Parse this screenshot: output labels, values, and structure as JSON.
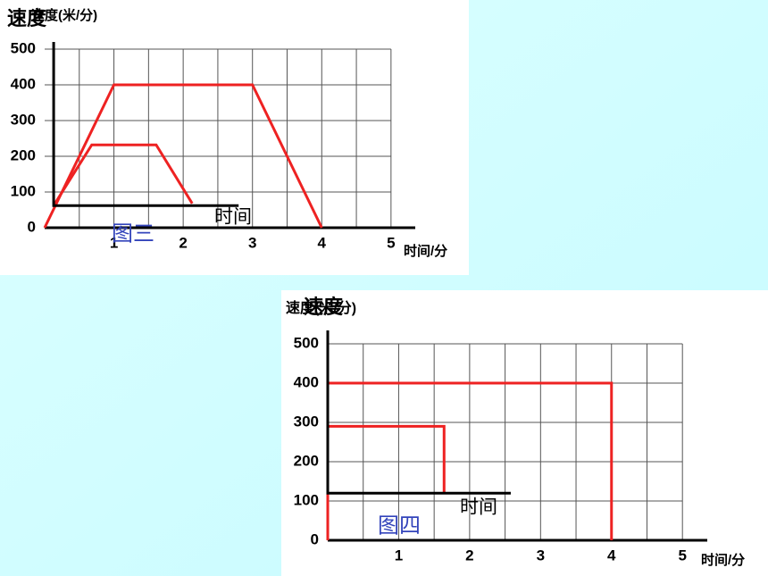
{
  "chart_data": [
    {
      "type": "line",
      "y_label": "速度(米/分)",
      "x_label": "时间/分",
      "annotations": [
        "速度",
        "时间",
        "图三"
      ],
      "xlim": [
        0,
        5.35
      ],
      "ylim": [
        0,
        500
      ],
      "xticks": [
        1,
        2,
        3,
        4,
        5
      ],
      "yticks": [
        0,
        100,
        200,
        300,
        400,
        500
      ],
      "grid": true,
      "series": [
        {
          "color": "#ee2222",
          "x": [
            0,
            1,
            3,
            4
          ],
          "values": [
            0,
            400,
            400,
            0
          ]
        },
        {
          "color": "#ee2222",
          "x": [
            0.13,
            0.68,
            1.61,
            2.13
          ],
          "values": [
            62,
            232,
            232,
            68
          ]
        },
        {
          "color": "#000000",
          "x": [
            0.13,
            0.13,
            2.8
          ],
          "values": [
            520,
            62,
            62
          ]
        }
      ]
    },
    {
      "type": "line",
      "y_label": "速度(米/分)",
      "x_label": "时间/分",
      "annotations": [
        "速度",
        "时间",
        "图四"
      ],
      "xlim": [
        0,
        5.35
      ],
      "ylim": [
        0,
        500
      ],
      "xticks": [
        1,
        2,
        3,
        4,
        5
      ],
      "yticks": [
        0,
        100,
        200,
        300,
        400,
        500
      ],
      "grid": true,
      "series": [
        {
          "color": "#ee2222",
          "x": [
            0,
            0,
            4,
            4
          ],
          "values": [
            0,
            400,
            400,
            0
          ]
        },
        {
          "color": "#ee2222",
          "x": [
            0,
            0,
            1.64,
            1.64
          ],
          "values": [
            120,
            290,
            290,
            120
          ]
        },
        {
          "color": "#000000",
          "x": [
            0,
            0,
            2.58
          ],
          "values": [
            534,
            120,
            120
          ]
        }
      ]
    }
  ]
}
